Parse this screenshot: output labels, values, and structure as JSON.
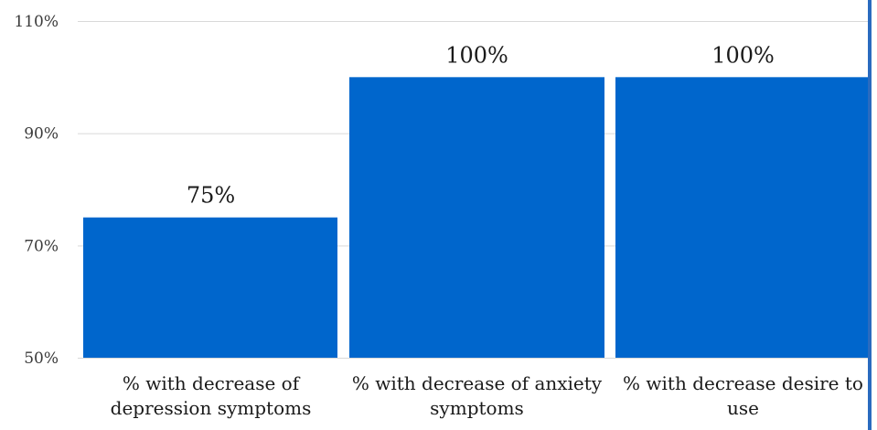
{
  "chart_data": {
    "type": "bar",
    "categories": [
      [
        "% with decrease of",
        "depression symptoms"
      ],
      [
        "% with decrease of anxiety",
        "symptoms"
      ],
      [
        "% with decrease desire to",
        "use"
      ]
    ],
    "values": [
      75,
      100,
      100
    ],
    "data_labels": [
      "75%",
      "100%",
      "100%"
    ],
    "ylim": [
      50,
      110
    ],
    "yticks": [
      50,
      70,
      90,
      110
    ],
    "ytick_labels": [
      "50%",
      "70%",
      "90%",
      "110%"
    ],
    "grid": true,
    "legend": "none",
    "bar_color": "#0066cc"
  }
}
